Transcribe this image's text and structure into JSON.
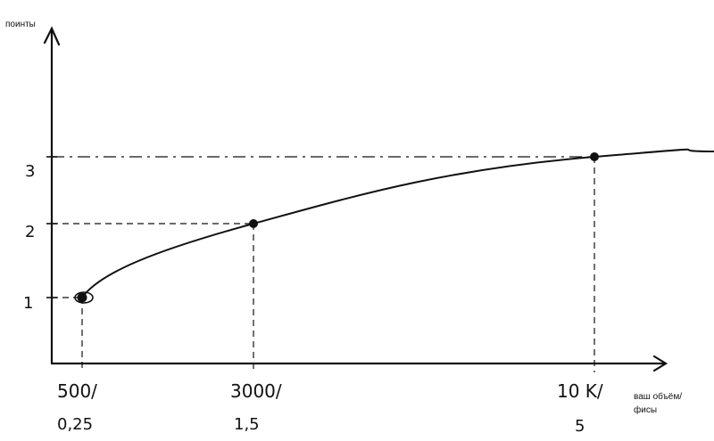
{
  "chart_data": {
    "type": "line",
    "title": "",
    "ylabel": "поинты",
    "xlabel_lines": [
      "ваш объём/",
      "фисы"
    ],
    "x_ticks": [
      {
        "top": "500/",
        "bottom": "0,25",
        "x": 500
      },
      {
        "top": "3000/",
        "bottom": "1,5",
        "x": 3000
      },
      {
        "top": "10 K/",
        "bottom": "5",
        "x": 10000
      }
    ],
    "y_ticks": [
      {
        "label": "1",
        "y": 1
      },
      {
        "label": "2",
        "y": 2
      },
      {
        "label": "3",
        "y": 3
      }
    ],
    "points": [
      {
        "x": 500,
        "y": 1
      },
      {
        "x": 3000,
        "y": 2
      },
      {
        "x": 10000,
        "y": 3
      }
    ],
    "grid": false,
    "guide_lines": "dashed"
  }
}
